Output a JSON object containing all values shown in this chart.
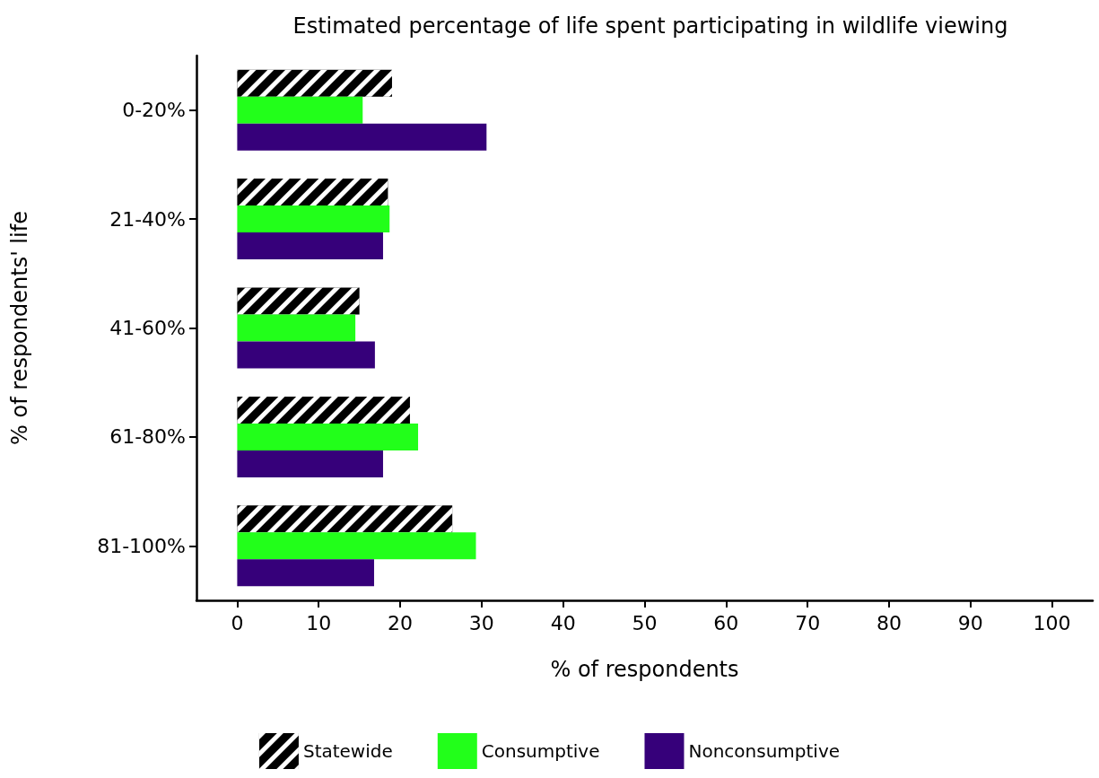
{
  "chart_data": {
    "type": "bar",
    "orientation": "horizontal",
    "title": "Estimated percentage of life spent participating in wildlife viewing",
    "xlabel": "% of respondents",
    "ylabel": "% of respondents' life",
    "categories": [
      "0-20%",
      "21-40%",
      "41-60%",
      "61-80%",
      "81-100%"
    ],
    "series": [
      {
        "name": "Statewide",
        "color": "#000000",
        "values": [
          19.0,
          18.5,
          15.0,
          21.2,
          26.4
        ]
      },
      {
        "name": "Consumptive",
        "color": "#22ff1a",
        "values": [
          15.4,
          18.7,
          14.5,
          22.2,
          29.3
        ]
      },
      {
        "name": "Nonconsumptive",
        "color": "#36007a",
        "values": [
          30.6,
          17.9,
          16.9,
          17.9,
          16.8
        ]
      }
    ],
    "xlim": [
      -5,
      105
    ],
    "xticks": [
      0,
      10,
      20,
      30,
      40,
      50,
      60,
      70,
      80,
      90,
      100
    ],
    "grid": false,
    "legend": "bottom"
  }
}
